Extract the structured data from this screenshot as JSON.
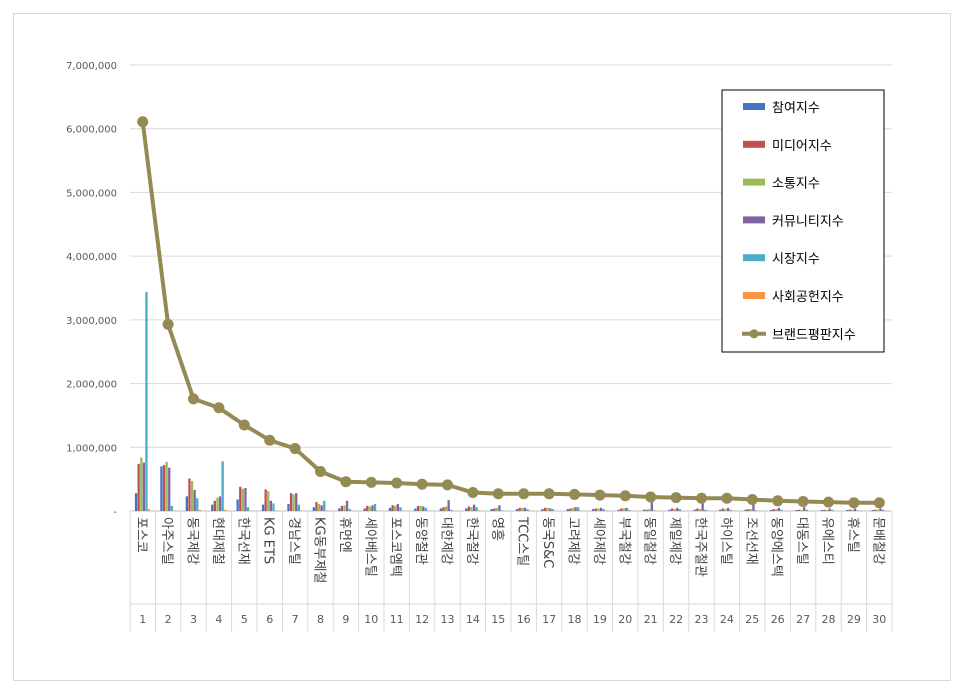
{
  "chart_data": {
    "type": "bar",
    "ylim": [
      0,
      7000000
    ],
    "yticks": [
      0,
      1000000,
      2000000,
      3000000,
      4000000,
      5000000,
      6000000,
      7000000
    ],
    "ytick_labels": [
      "-",
      "1,000,000",
      "2,000,000",
      "3,000,000",
      "4,000,000",
      "5,000,000",
      "6,000,000",
      "7,000,000"
    ],
    "grid": true,
    "legend_position": "top-right",
    "ranks": [
      "1",
      "2",
      "3",
      "4",
      "5",
      "6",
      "7",
      "8",
      "9",
      "10",
      "11",
      "12",
      "13",
      "14",
      "15",
      "16",
      "17",
      "18",
      "19",
      "20",
      "21",
      "22",
      "23",
      "24",
      "25",
      "26",
      "27",
      "28",
      "29",
      "30"
    ],
    "categories": [
      "포스코",
      "아주스틸",
      "동국제강",
      "현대제철",
      "한국선재",
      "KG ETS",
      "경남스틸",
      "KG동부제철",
      "휴먼엔",
      "세아베스틸",
      "포스코엠텍",
      "동양철관",
      "대한제강",
      "한국철강",
      "영흥",
      "TCC스틸",
      "동국S&C",
      "고려제강",
      "세아제강",
      "부국철강",
      "동일철강",
      "제일제강",
      "한국주철관",
      "하이스틸",
      "조선선재",
      "동양에스텍",
      "대동스틸",
      "유에스티",
      "휴스틸",
      "문배철강"
    ],
    "series": [
      {
        "name": "참여지수",
        "color": "#4472C4",
        "values": [
          280000,
          700000,
          230000,
          100000,
          180000,
          100000,
          110000,
          60000,
          40000,
          40000,
          50000,
          40000,
          40000,
          40000,
          30000,
          30000,
          30000,
          30000,
          30000,
          20000,
          20000,
          20000,
          20000,
          20000,
          20000,
          15000,
          15000,
          15000,
          15000,
          15000
        ]
      },
      {
        "name": "미디어지수",
        "color": "#C0504D",
        "values": [
          740000,
          720000,
          510000,
          160000,
          380000,
          340000,
          280000,
          140000,
          80000,
          80000,
          90000,
          80000,
          60000,
          70000,
          40000,
          50000,
          50000,
          40000,
          40000,
          40000,
          20000,
          40000,
          40000,
          40000,
          30000,
          30000,
          20000,
          20000,
          20000,
          20000
        ]
      },
      {
        "name": "소통지수",
        "color": "#9BBB59",
        "values": [
          840000,
          770000,
          470000,
          210000,
          350000,
          310000,
          260000,
          110000,
          90000,
          70000,
          80000,
          80000,
          70000,
          60000,
          50000,
          50000,
          50000,
          50000,
          40000,
          40000,
          30000,
          30000,
          30000,
          30000,
          30000,
          30000,
          20000,
          20000,
          20000,
          20000
        ]
      },
      {
        "name": "커뮤니티지수",
        "color": "#8064A2",
        "values": [
          760000,
          680000,
          330000,
          230000,
          360000,
          160000,
          280000,
          90000,
          160000,
          90000,
          110000,
          70000,
          170000,
          100000,
          90000,
          50000,
          40000,
          60000,
          50000,
          50000,
          150000,
          50000,
          120000,
          50000,
          160000,
          50000,
          60000,
          40000,
          40000,
          40000
        ]
      },
      {
        "name": "시장지수",
        "color": "#4BACC6",
        "values": [
          3440000,
          80000,
          200000,
          780000,
          60000,
          120000,
          100000,
          160000,
          30000,
          110000,
          60000,
          50000,
          20000,
          60000,
          10000,
          30000,
          30000,
          60000,
          30000,
          20000,
          10000,
          30000,
          20000,
          20000,
          10000,
          20000,
          20000,
          20000,
          10000,
          20000
        ]
      },
      {
        "name": "사회공헌지수",
        "color": "#F79646",
        "values": [
          30000,
          10000,
          20000,
          20000,
          10000,
          10000,
          10000,
          10000,
          5000,
          10000,
          10000,
          10000,
          5000,
          10000,
          5000,
          5000,
          5000,
          5000,
          5000,
          5000,
          5000,
          5000,
          5000,
          5000,
          5000,
          5000,
          5000,
          5000,
          5000,
          5000
        ]
      }
    ],
    "line": {
      "name": "브랜드평판지수",
      "color": "#948A54",
      "values": [
        6110000,
        2930000,
        1760000,
        1620000,
        1350000,
        1110000,
        980000,
        620000,
        460000,
        450000,
        440000,
        420000,
        410000,
        290000,
        270000,
        270000,
        270000,
        260000,
        250000,
        240000,
        220000,
        210000,
        200000,
        200000,
        180000,
        160000,
        150000,
        140000,
        130000,
        130000
      ]
    }
  }
}
